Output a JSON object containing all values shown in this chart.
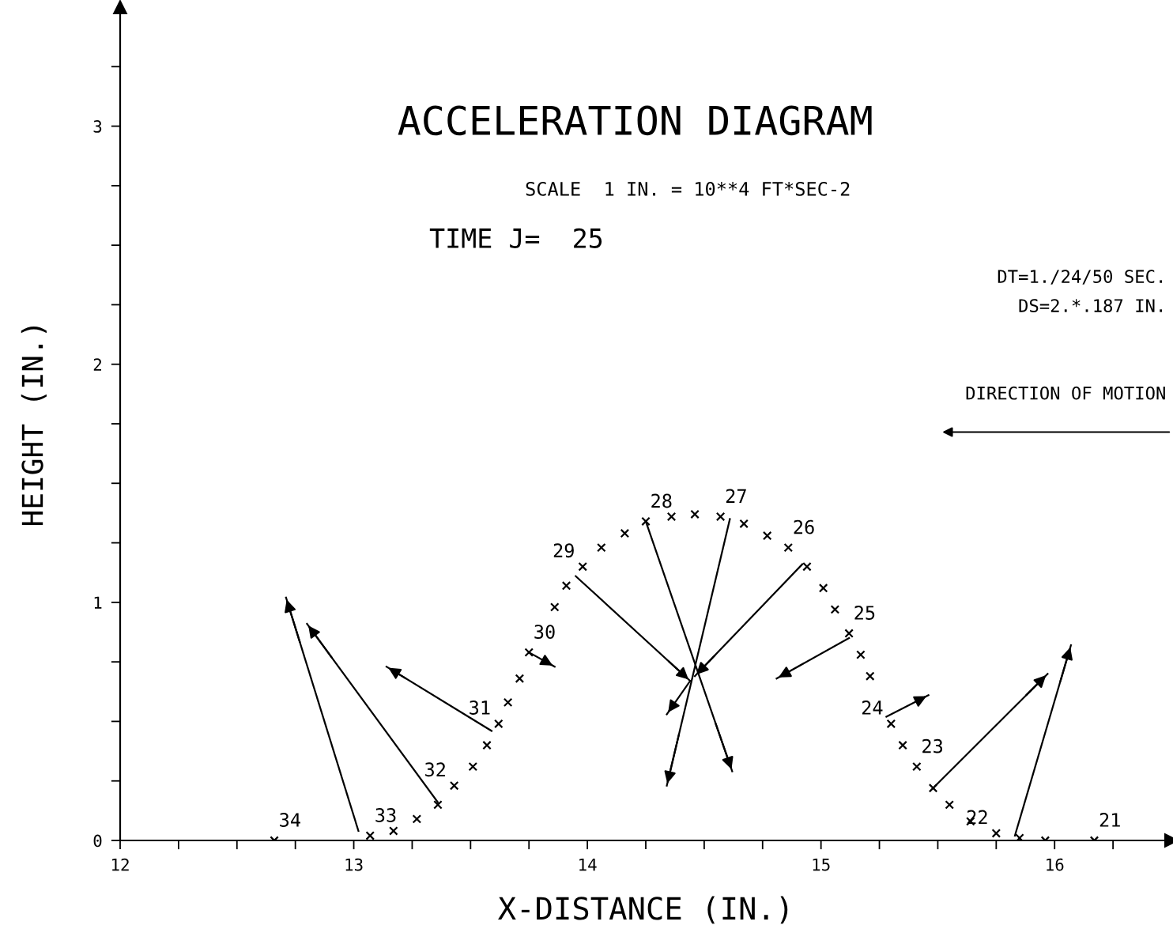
{
  "chart_data": {
    "type": "scatter",
    "title": "ACCELERATION DIAGRAM",
    "subtitle": "SCALE  1 IN. = 10**4 FT*SEC-2",
    "xlabel": "X-DISTANCE (IN.)",
    "ylabel": "HEIGHT (IN.)",
    "xlim": [
      12,
      16.5
    ],
    "ylim": [
      0,
      3.5
    ],
    "xticks": [
      12,
      {
        "value": 12.25,
        "label": null
      },
      {
        "value": 12.5,
        "label": null
      },
      {
        "value": 12.75,
        "label": null
      },
      13,
      {
        "value": 13.25,
        "label": null
      },
      {
        "value": 13.5,
        "label": null
      },
      {
        "value": 13.75,
        "label": null
      },
      14,
      {
        "value": 14.25,
        "label": null
      },
      {
        "value": 14.5,
        "label": null
      },
      {
        "value": 14.75,
        "label": null
      },
      15,
      {
        "value": 15.25,
        "label": null
      },
      {
        "value": 15.5,
        "label": null
      },
      {
        "value": 15.75,
        "label": null
      },
      16,
      {
        "value": 16.25,
        "label": null
      }
    ],
    "yticks": [
      0,
      {
        "value": 0.25,
        "label": null
      },
      {
        "value": 0.5,
        "label": null
      },
      {
        "value": 0.75,
        "label": null
      },
      1,
      {
        "value": 1.25,
        "label": null
      },
      {
        "value": 1.5,
        "label": null
      },
      {
        "value": 1.75,
        "label": null
      },
      2,
      {
        "value": 2.25,
        "label": null
      },
      {
        "value": 2.5,
        "label": null
      },
      {
        "value": 2.75,
        "label": null
      },
      3,
      {
        "value": 3.25,
        "label": null
      }
    ],
    "grid": false,
    "legend": false,
    "series": [
      {
        "marker": "cross",
        "color": "#000000",
        "x": [
          12.66,
          13.07,
          13.17,
          13.27,
          13.36,
          13.43,
          13.51,
          13.57,
          13.62,
          13.66,
          13.71,
          13.75,
          13.86,
          13.91,
          13.98,
          14.06,
          14.16,
          14.25,
          14.36,
          14.46,
          14.57,
          14.67,
          14.77,
          14.86,
          14.94,
          15.01,
          15.06,
          15.12,
          15.17,
          15.21,
          15.3,
          15.35,
          15.41,
          15.48,
          15.55,
          15.64,
          15.75,
          15.85,
          15.96,
          16.17
        ],
        "values": [
          0.0,
          0.02,
          0.04,
          0.09,
          0.15,
          0.23,
          0.31,
          0.4,
          0.49,
          0.58,
          0.68,
          0.79,
          0.98,
          1.07,
          1.15,
          1.23,
          1.29,
          1.34,
          1.36,
          1.37,
          1.36,
          1.33,
          1.28,
          1.23,
          1.15,
          1.06,
          0.97,
          0.87,
          0.78,
          0.69,
          0.49,
          0.4,
          0.31,
          0.22,
          0.15,
          0.08,
          0.03,
          0.01,
          0.0,
          0.0
        ]
      },
      {
        "type": "line",
        "marker": "none",
        "color": "#000000",
        "x": [
          13.02,
          12.71
        ],
        "values": [
          0.04,
          1.02
        ]
      },
      {
        "type": "line",
        "marker": "none",
        "color": "#000000",
        "x": [
          13.36,
          12.8
        ],
        "values": [
          0.16,
          0.91
        ]
      },
      {
        "type": "line",
        "marker": "none",
        "color": "#000000",
        "x": [
          13.59,
          13.14
        ],
        "values": [
          0.46,
          0.73
        ]
      },
      {
        "type": "line",
        "marker": "none",
        "color": "#000000",
        "x": [
          13.75,
          13.86
        ],
        "values": [
          0.79,
          0.73
        ]
      },
      {
        "type": "line",
        "marker": "none",
        "color": "#000000",
        "x": [
          13.95,
          14.44
        ],
        "values": [
          1.11,
          0.67
        ]
      },
      {
        "type": "line",
        "marker": "none",
        "color": "#000000",
        "x": [
          14.25,
          14.62
        ],
        "values": [
          1.34,
          0.29
        ]
      },
      {
        "type": "line",
        "marker": "none",
        "color": "#000000",
        "x": [
          14.61,
          14.34
        ],
        "values": [
          1.35,
          0.23
        ]
      },
      {
        "type": "line",
        "marker": "none",
        "color": "#000000",
        "x": [
          14.92,
          14.46
        ],
        "values": [
          1.16,
          0.69
        ]
      },
      {
        "type": "line",
        "marker": "none",
        "color": "#000000",
        "x": [
          15.12,
          14.81
        ],
        "values": [
          0.85,
          0.68
        ]
      },
      {
        "type": "line",
        "marker": "none",
        "color": "#000000",
        "x": [
          15.28,
          15.46
        ],
        "values": [
          0.52,
          0.61
        ]
      },
      {
        "type": "line",
        "marker": "none",
        "color": "#000000",
        "x": [
          15.48,
          15.97
        ],
        "values": [
          0.22,
          0.7
        ]
      },
      {
        "type": "line",
        "marker": "none",
        "color": "#000000",
        "x": [
          15.83,
          16.07
        ],
        "values": [
          0.02,
          0.82
        ]
      },
      {
        "type": "line",
        "marker": "none",
        "color": "#000000",
        "x": [
          14.44,
          14.34
        ],
        "values": [
          0.67,
          0.53
        ]
      }
    ],
    "annotations": [
      "TIME J=  25",
      "DT=1./24/50 SEC.",
      "DS=2.*.187 IN.",
      "DIRECTION OF MOTION",
      {
        "text": "34",
        "x": 12.66,
        "y": 0.0
      },
      {
        "text": "33",
        "x": 13.07,
        "y": 0.02
      },
      {
        "text": "32",
        "x": 13.43,
        "y": 0.23
      },
      {
        "text": "31",
        "x": 13.62,
        "y": 0.49
      },
      {
        "text": "30",
        "x": 13.75,
        "y": 0.79
      },
      {
        "text": "29",
        "x": 13.98,
        "y": 1.15
      },
      {
        "text": "28",
        "x": 14.25,
        "y": 1.34
      },
      {
        "text": "27",
        "x": 14.57,
        "y": 1.36
      },
      {
        "text": "26",
        "x": 14.86,
        "y": 1.23
      },
      {
        "text": "25",
        "x": 15.12,
        "y": 0.87
      },
      {
        "text": "24",
        "x": 15.3,
        "y": 0.49
      },
      {
        "text": "23",
        "x": 15.41,
        "y": 0.31
      },
      {
        "text": "22",
        "x": 15.75,
        "y": 0.03
      },
      {
        "text": "21",
        "x": 16.17,
        "y": 0.0
      }
    ]
  }
}
